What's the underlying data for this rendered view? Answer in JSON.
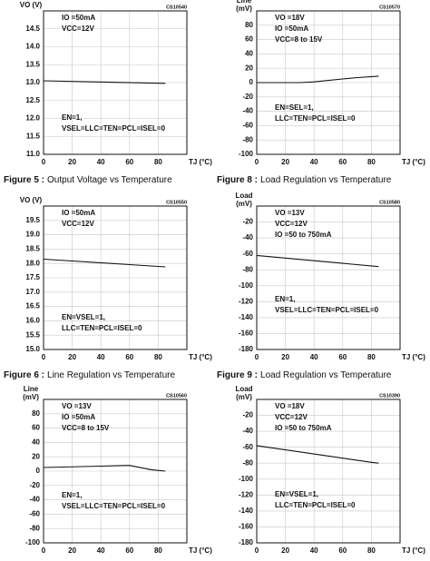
{
  "chart_data": [
    {
      "type": "line",
      "code": "CS10540",
      "ylabel": [
        "VO (V)"
      ],
      "xlabel": "TJ (°C)",
      "figure": "Figure 5 :",
      "caption": "Output Voltage vs Temperature",
      "annotations": [
        [
          "IO =50mA",
          "VCC=12V"
        ],
        [
          "EN=1,",
          "VSEL=LLC=TEN=PCL=ISEL=0"
        ]
      ],
      "x": [
        0,
        85
      ],
      "values": [
        13.05,
        12.98
      ],
      "color": "#111111",
      "xlim": [
        0,
        100
      ],
      "xticks": [
        0,
        20,
        40,
        60,
        80
      ],
      "ylim": [
        11,
        15
      ],
      "yticks": [
        {
          "value": 11,
          "label": "11.0"
        },
        11.5,
        {
          "value": 12,
          "label": "12.0"
        },
        12.5,
        {
          "value": 13,
          "label": "13.0"
        },
        13.5,
        {
          "value": 14,
          "label": "14.0"
        },
        14.5
      ],
      "grid": true
    },
    {
      "type": "line",
      "code": "CS10570",
      "ylabel": [
        "Line",
        "(mV)"
      ],
      "xlabel": "TJ (°C)",
      "figure": "Figure 8 :",
      "caption": "Load Regulation vs Temperature",
      "annotations": [
        [
          "VO =18V",
          "IO =50mA",
          "VCC=8 to 15V"
        ],
        [
          "EN=SEL=1,",
          "LLC=TEN=PCL=ISEL=0"
        ]
      ],
      "x": [
        0,
        20,
        30,
        40,
        50,
        60,
        70,
        85
      ],
      "values": [
        0,
        0,
        0,
        1,
        3,
        5,
        7,
        9
      ],
      "color": "#111111",
      "xlim": [
        0,
        100
      ],
      "xticks": [
        0,
        20,
        40,
        60,
        80
      ],
      "ylim": [
        -100,
        100
      ],
      "yticks": [
        -100,
        -80,
        -60,
        -40,
        -20,
        0,
        20,
        40,
        60,
        80
      ],
      "grid": true
    },
    {
      "type": "line",
      "code": "CS10550",
      "ylabel": [
        "VO (V)"
      ],
      "xlabel": "TJ (°C)",
      "figure": "Figure 6 :",
      "caption": "Line Regulation vs Temperature",
      "annotations": [
        [
          "IO =50mA",
          "VCC=12V"
        ],
        [
          "EN=VSEL=1,",
          "LLC=TEN=PCL=ISEL=0"
        ]
      ],
      "x": [
        0,
        85
      ],
      "values": [
        18.15,
        17.88
      ],
      "color": "#111111",
      "xlim": [
        0,
        100
      ],
      "xticks": [
        0,
        20,
        40,
        60,
        80
      ],
      "ylim": [
        15,
        20
      ],
      "yticks": [
        {
          "value": 15,
          "label": "15.0"
        },
        15.5,
        {
          "value": 16,
          "label": "16.0"
        },
        16.5,
        {
          "value": 17,
          "label": "17.0"
        },
        17.5,
        {
          "value": 18,
          "label": "18.0"
        },
        18.5,
        {
          "value": 19,
          "label": "19.0"
        },
        19.5
      ],
      "grid": true
    },
    {
      "type": "line",
      "code": "CS10580",
      "ylabel": [
        "Load",
        "(mV)"
      ],
      "xlabel": "TJ (°C)",
      "figure": "Figure 9 :",
      "caption": "Load Regulation vs Temperature",
      "annotations": [
        [
          "VO =13V",
          "VCC=12V",
          "IO =50 to 750mA"
        ],
        [
          "EN=1,",
          "VSEL=LLC=TEN=PCL=ISEL=0"
        ]
      ],
      "x": [
        0,
        85
      ],
      "values": [
        -62,
        -76
      ],
      "color": "#111111",
      "xlim": [
        0,
        100
      ],
      "xticks": [
        0,
        20,
        40,
        60,
        80
      ],
      "ylim": [
        -180,
        0
      ],
      "yticks": [
        -180,
        -160,
        -140,
        -120,
        -100,
        -80,
        -60,
        -40,
        -20
      ],
      "grid": true
    },
    {
      "type": "line",
      "code": "CS10560",
      "ylabel": [
        "Line",
        "(mV)"
      ],
      "xlabel": "TJ (°C)",
      "annotations": [
        [
          "VO =13V",
          "IO =50mA",
          "VCC=8 to 15V"
        ],
        [
          "EN=1,",
          "VSEL=LLC=TEN=PCL=ISEL=0"
        ]
      ],
      "x": [
        0,
        40,
        60,
        75,
        85
      ],
      "values": [
        5,
        7,
        8,
        2,
        0
      ],
      "color": "#111111",
      "xlim": [
        0,
        100
      ],
      "xticks": [
        0,
        20,
        40,
        60,
        80
      ],
      "ylim": [
        -100,
        100
      ],
      "yticks": [
        -100,
        -80,
        -60,
        -40,
        -20,
        0,
        20,
        40,
        60,
        80
      ],
      "grid": true
    },
    {
      "type": "line",
      "code": "CS10390",
      "ylabel": [
        "Load",
        "(mV)"
      ],
      "xlabel": "TJ (°C)",
      "annotations": [
        [
          "VO =18V",
          "VCC=12V",
          "IO =50 to 750mA"
        ],
        [
          "EN=VSEL=1,",
          "LLC=TEN=PCL=ISEL=0"
        ]
      ],
      "x": [
        0,
        80,
        85
      ],
      "values": [
        -58,
        -79,
        -80
      ],
      "color": "#111111",
      "xlim": [
        0,
        100
      ],
      "xticks": [
        0,
        20,
        40,
        60,
        80
      ],
      "ylim": [
        -180,
        0
      ],
      "yticks": [
        -180,
        -160,
        -140,
        -120,
        -100,
        -80,
        -60,
        -40,
        -20
      ],
      "grid": true
    }
  ]
}
